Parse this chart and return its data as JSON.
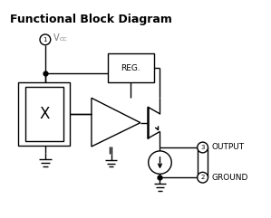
{
  "title": "Functional Block Diagram",
  "title_fontsize": 9,
  "bg_color": "#ffffff",
  "line_color": "#000000",
  "gray_color": "#777777",
  "figsize": [
    2.99,
    2.41
  ],
  "dpi": 100,
  "output_label": "OUTPUT",
  "ground_label": "GROUND"
}
